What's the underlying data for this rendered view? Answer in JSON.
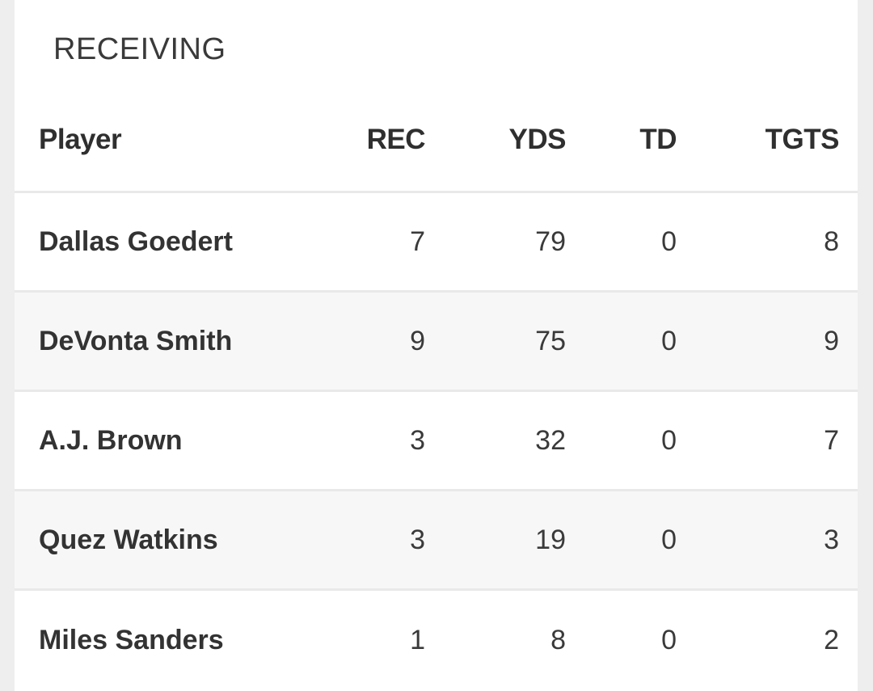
{
  "section": {
    "title": "RECEIVING"
  },
  "table": {
    "columns": {
      "player": "Player",
      "rec": "REC",
      "yds": "YDS",
      "td": "TD",
      "tgts": "TGTS"
    },
    "rows": [
      {
        "player": "Dallas Goedert",
        "rec": "7",
        "yds": "79",
        "td": "0",
        "tgts": "8"
      },
      {
        "player": "DeVonta Smith",
        "rec": "9",
        "yds": "75",
        "td": "0",
        "tgts": "9"
      },
      {
        "player": "A.J. Brown",
        "rec": "3",
        "yds": "32",
        "td": "0",
        "tgts": "7"
      },
      {
        "player": "Quez Watkins",
        "rec": "3",
        "yds": "19",
        "td": "0",
        "tgts": "3"
      },
      {
        "player": "Miles Sanders",
        "rec": "1",
        "yds": "8",
        "td": "0",
        "tgts": "2"
      }
    ]
  },
  "colors": {
    "background": "#eeeeee",
    "card": "#ffffff",
    "row_alt": "#f7f7f7",
    "divider": "#e9e9e9",
    "text": "#333333"
  }
}
